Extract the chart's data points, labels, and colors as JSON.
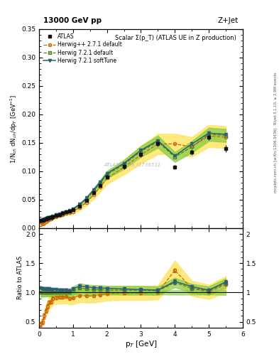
{
  "title_top": "13000 GeV pp",
  "title_right": "Z+Jet",
  "plot_title": "Scalar Σ(p_T) (ATLAS UE in Z production)",
  "watermark": "ATLAS_2019_I1736531",
  "right_label": "Rivet 3.1.10, ≥ 2.9M events",
  "right_label2": "mcplots.cern.ch [arXiv:1306.3436]",
  "ylabel_main": "1/N$_{ch}$ dN$_{ch}$/dp$_T$ [GeV$^{-1}$]",
  "ylabel_ratio": "Ratio to ATLAS",
  "xlabel": "p$_T$ [GeV]",
  "ylim_main": [
    0.0,
    0.35
  ],
  "ylim_ratio": [
    0.4,
    2.1
  ],
  "atlas_x": [
    0.05,
    0.1,
    0.15,
    0.2,
    0.25,
    0.3,
    0.35,
    0.4,
    0.5,
    0.6,
    0.7,
    0.8,
    0.9,
    1.0,
    1.2,
    1.4,
    1.6,
    1.8,
    2.0,
    2.5,
    3.0,
    3.5,
    4.0,
    4.5,
    5.0,
    5.5
  ],
  "atlas_y": [
    0.013,
    0.014,
    0.015,
    0.016,
    0.017,
    0.018,
    0.019,
    0.02,
    0.022,
    0.024,
    0.026,
    0.028,
    0.03,
    0.032,
    0.038,
    0.048,
    0.062,
    0.075,
    0.09,
    0.108,
    0.13,
    0.148,
    0.107,
    0.134,
    0.16,
    0.14
  ],
  "atlas_yerr": [
    0.001,
    0.001,
    0.001,
    0.001,
    0.001,
    0.001,
    0.001,
    0.001,
    0.001,
    0.001,
    0.001,
    0.001,
    0.001,
    0.001,
    0.002,
    0.002,
    0.003,
    0.003,
    0.003,
    0.004,
    0.005,
    0.005,
    0.004,
    0.005,
    0.005,
    0.006
  ],
  "hw271_x": [
    0.05,
    0.1,
    0.15,
    0.2,
    0.25,
    0.3,
    0.35,
    0.4,
    0.5,
    0.6,
    0.7,
    0.8,
    0.9,
    1.0,
    1.2,
    1.4,
    1.6,
    1.8,
    2.0,
    2.5,
    3.0,
    3.5,
    4.0,
    4.5,
    5.0,
    5.5
  ],
  "hw271_y": [
    0.006,
    0.007,
    0.009,
    0.011,
    0.013,
    0.015,
    0.016,
    0.018,
    0.02,
    0.022,
    0.024,
    0.026,
    0.027,
    0.029,
    0.036,
    0.045,
    0.058,
    0.072,
    0.088,
    0.107,
    0.129,
    0.148,
    0.148,
    0.143,
    0.162,
    0.16
  ],
  "hw721d_x": [
    0.05,
    0.1,
    0.15,
    0.2,
    0.25,
    0.3,
    0.35,
    0.4,
    0.5,
    0.6,
    0.7,
    0.8,
    0.9,
    1.0,
    1.2,
    1.4,
    1.6,
    1.8,
    2.0,
    2.5,
    3.0,
    3.5,
    4.0,
    4.5,
    5.0,
    5.5
  ],
  "hw721d_y": [
    0.013,
    0.014,
    0.015,
    0.016,
    0.017,
    0.018,
    0.019,
    0.02,
    0.022,
    0.024,
    0.026,
    0.028,
    0.03,
    0.033,
    0.041,
    0.051,
    0.065,
    0.079,
    0.094,
    0.112,
    0.135,
    0.152,
    0.125,
    0.143,
    0.165,
    0.163
  ],
  "hw721s_x": [
    0.05,
    0.1,
    0.15,
    0.2,
    0.25,
    0.3,
    0.35,
    0.4,
    0.5,
    0.6,
    0.7,
    0.8,
    0.9,
    1.0,
    1.2,
    1.4,
    1.6,
    1.8,
    2.0,
    2.5,
    3.0,
    3.5,
    4.0,
    4.5,
    5.0,
    5.5
  ],
  "hw721s_y": [
    0.014,
    0.015,
    0.016,
    0.017,
    0.018,
    0.019,
    0.02,
    0.021,
    0.023,
    0.025,
    0.027,
    0.029,
    0.031,
    0.034,
    0.042,
    0.053,
    0.067,
    0.081,
    0.096,
    0.114,
    0.137,
    0.154,
    0.127,
    0.148,
    0.167,
    0.165
  ],
  "atlas_color": "#111111",
  "hw271_color": "#cc6600",
  "hw721d_color": "#557a2a",
  "hw721s_color": "#2a6077",
  "hw271_band_color": "#ffe566",
  "hw721d_band_color": "#88cc44",
  "ratio_hw271_x": [
    0.05,
    0.1,
    0.15,
    0.2,
    0.25,
    0.3,
    0.35,
    0.4,
    0.5,
    0.6,
    0.7,
    0.8,
    0.9,
    1.0,
    1.2,
    1.4,
    1.6,
    1.8,
    2.0,
    2.5,
    3.0,
    3.5,
    4.0,
    4.5,
    5.0,
    5.5
  ],
  "ratio_hw271_y": [
    0.46,
    0.5,
    0.6,
    0.69,
    0.76,
    0.83,
    0.84,
    0.9,
    0.91,
    0.92,
    0.92,
    0.93,
    0.9,
    0.91,
    0.95,
    0.94,
    0.94,
    0.96,
    0.98,
    0.99,
    0.99,
    1.0,
    1.38,
    1.07,
    1.01,
    1.14
  ],
  "ratio_hw721d_x": [
    0.05,
    0.1,
    0.15,
    0.2,
    0.25,
    0.3,
    0.35,
    0.4,
    0.5,
    0.6,
    0.7,
    0.8,
    0.9,
    1.0,
    1.2,
    1.4,
    1.6,
    1.8,
    2.0,
    2.5,
    3.0,
    3.5,
    4.0,
    4.5,
    5.0,
    5.5
  ],
  "ratio_hw721d_y": [
    1.0,
    1.0,
    1.0,
    1.0,
    1.0,
    1.0,
    1.0,
    1.0,
    1.0,
    1.0,
    1.0,
    1.0,
    1.0,
    1.03,
    1.08,
    1.06,
    1.05,
    1.05,
    1.04,
    1.04,
    1.04,
    1.03,
    1.17,
    1.07,
    1.03,
    1.16
  ],
  "ratio_hw721s_x": [
    0.05,
    0.1,
    0.15,
    0.2,
    0.25,
    0.3,
    0.35,
    0.4,
    0.5,
    0.6,
    0.7,
    0.8,
    0.9,
    1.0,
    1.2,
    1.4,
    1.6,
    1.8,
    2.0,
    2.5,
    3.0,
    3.5,
    4.0,
    4.5,
    5.0,
    5.5
  ],
  "ratio_hw721s_y": [
    1.08,
    1.07,
    1.07,
    1.06,
    1.06,
    1.06,
    1.05,
    1.05,
    1.05,
    1.04,
    1.04,
    1.04,
    1.03,
    1.06,
    1.11,
    1.1,
    1.08,
    1.08,
    1.07,
    1.06,
    1.05,
    1.04,
    1.19,
    1.1,
    1.04,
    1.18
  ],
  "xlim": [
    0.0,
    6.0
  ],
  "ratio_hw271_yerr": [
    0.04,
    0.04,
    0.04,
    0.04,
    0.04,
    0.03,
    0.03,
    0.03,
    0.03,
    0.02,
    0.02,
    0.02,
    0.02,
    0.02,
    0.02,
    0.02,
    0.02,
    0.02,
    0.02,
    0.02,
    0.02,
    0.02,
    0.03,
    0.03,
    0.02,
    0.03
  ],
  "ratio_hw721d_yerr": [
    0.02,
    0.02,
    0.02,
    0.02,
    0.02,
    0.02,
    0.02,
    0.02,
    0.02,
    0.02,
    0.02,
    0.02,
    0.02,
    0.02,
    0.02,
    0.02,
    0.02,
    0.02,
    0.02,
    0.02,
    0.02,
    0.02,
    0.03,
    0.03,
    0.02,
    0.03
  ],
  "ratio_hw721s_yerr": [
    0.02,
    0.02,
    0.02,
    0.02,
    0.02,
    0.02,
    0.02,
    0.02,
    0.02,
    0.02,
    0.02,
    0.02,
    0.02,
    0.02,
    0.02,
    0.02,
    0.02,
    0.02,
    0.02,
    0.02,
    0.02,
    0.02,
    0.03,
    0.03,
    0.02,
    0.03
  ]
}
